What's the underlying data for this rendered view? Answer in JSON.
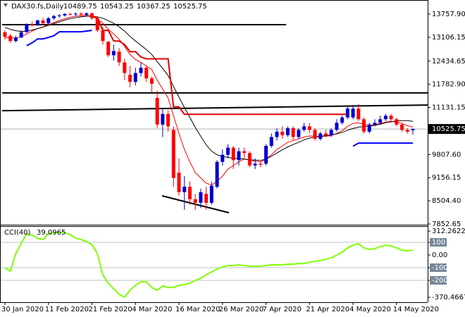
{
  "chart_data": [
    {
      "type": "candlestick",
      "title": "DAX30.fs,Daily",
      "categories": [
        "30 Jan 2020",
        null,
        null,
        null,
        null,
        null,
        null,
        null,
        "11 Feb 2020",
        null,
        null,
        null,
        null,
        null,
        null,
        null,
        "21 Feb 2020",
        null,
        null,
        null,
        null,
        null,
        null,
        null,
        "4 Mar 2020",
        null,
        null,
        null,
        null,
        null,
        null,
        null,
        "16 Mar 2020",
        null,
        null,
        null,
        null,
        null,
        null,
        null,
        "26 Mar 2020",
        null,
        null,
        null,
        null,
        null,
        null,
        null,
        "7 Apr 2020",
        null,
        null,
        null,
        null,
        null,
        null,
        null,
        "21 Apr 2020",
        null,
        null,
        null,
        null,
        null,
        null,
        null,
        "4 May 2020",
        null,
        null,
        null,
        null,
        null,
        null,
        null,
        "14 May 2020",
        null,
        null,
        null
      ],
      "open": [
        13250,
        13150,
        13000,
        13100,
        13250,
        13480,
        13450,
        13580,
        13500,
        13640,
        13700,
        13720,
        13760,
        13750,
        13770,
        13740,
        13780,
        13640,
        13300,
        12980,
        12600,
        12700,
        12400,
        12050,
        11850,
        12100,
        12250,
        11950,
        11400,
        10650,
        10950,
        10500,
        9300,
        8750,
        8900,
        8550,
        8450,
        8700,
        8450,
        8900,
        9600,
        9800,
        10000,
        9650,
        9900,
        9850,
        9500,
        9550,
        9550,
        10050,
        10300,
        10450,
        10350,
        10550,
        10300,
        10500,
        10600,
        10500,
        10250,
        10400,
        10350,
        10500,
        10700,
        10850,
        10850,
        11100,
        10800,
        10450,
        10650,
        10700,
        10800,
        10900,
        10800,
        10650,
        10500,
        10489.75
      ],
      "high": [
        13300,
        13200,
        13150,
        13300,
        13500,
        13550,
        13600,
        13650,
        13680,
        13740,
        13760,
        13790,
        13800,
        13800,
        13810,
        13800,
        13800,
        13680,
        13400,
        13000,
        12900,
        12800,
        12500,
        12300,
        12250,
        12400,
        12300,
        12000,
        11600,
        11100,
        11050,
        10600,
        9700,
        9200,
        9050,
        8700,
        8850,
        8900,
        9050,
        9650,
        9950,
        10100,
        10050,
        10000,
        10000,
        9900,
        9700,
        9600,
        10100,
        10400,
        10550,
        10600,
        10600,
        10600,
        10550,
        10700,
        10700,
        10550,
        10450,
        10500,
        10550,
        10800,
        10900,
        11150,
        11200,
        11230,
        10850,
        10700,
        10800,
        10900,
        10950,
        10950,
        10850,
        10700,
        10550,
        10543.25
      ],
      "low": [
        13050,
        12950,
        12960,
        13080,
        13230,
        13400,
        13420,
        13480,
        13480,
        13600,
        13650,
        13690,
        13720,
        13700,
        13700,
        13700,
        13600,
        13250,
        12900,
        12550,
        12450,
        12300,
        11900,
        11700,
        11750,
        12000,
        11850,
        11550,
        10550,
        10300,
        10450,
        8900,
        8650,
        8250,
        8400,
        8250,
        8300,
        8250,
        8400,
        8850,
        9500,
        9700,
        9400,
        9500,
        9700,
        9450,
        9400,
        9450,
        9500,
        10000,
        10200,
        10250,
        10300,
        10200,
        10250,
        10450,
        10400,
        10200,
        10200,
        10300,
        10300,
        10450,
        10650,
        10800,
        10800,
        10750,
        10400,
        10400,
        10600,
        10650,
        10750,
        10700,
        10600,
        10450,
        10400,
        10367.25
      ],
      "close": [
        13120,
        13000,
        13100,
        13250,
        13480,
        13450,
        13580,
        13500,
        13640,
        13700,
        13720,
        13760,
        13750,
        13770,
        13740,
        13780,
        13640,
        13300,
        13000,
        12600,
        12720,
        12400,
        12100,
        11850,
        12100,
        12250,
        11950,
        11800,
        10650,
        10950,
        10600,
        9150,
        8750,
        8900,
        8550,
        8450,
        8750,
        8450,
        8930,
        9600,
        9800,
        10000,
        9650,
        9900,
        9850,
        9500,
        9550,
        9520,
        10050,
        10300,
        10450,
        10350,
        10550,
        10300,
        10500,
        10600,
        10500,
        10250,
        10400,
        10350,
        10500,
        10700,
        10850,
        11100,
        11100,
        10800,
        10450,
        10650,
        10700,
        10800,
        10900,
        10800,
        10650,
        10500,
        10450,
        10525.75
      ],
      "up_color": "#0000cd",
      "down_color": "#ff0000",
      "ylim": [
        7852.65,
        13757.9
      ],
      "yticks": [
        {
          "value": 13757.9,
          "label": "13757.90"
        },
        13106.15,
        12434.65,
        {
          "value": 11782.9,
          "label": "11782.90"
        },
        11131.15,
        {
          "value": 9807.6,
          "label": "9807.60"
        },
        9156.15,
        {
          "value": 8504.4,
          "label": "8504.40"
        },
        7852.65
      ],
      "series": [
        {
          "color": "#ff0000",
          "width": 1,
          "values": [
            13100,
            13090,
            13080,
            13120,
            13200,
            13280,
            13350,
            13400,
            13460,
            13520,
            13580,
            13630,
            13670,
            13700,
            13710,
            13720,
            13700,
            13620,
            13500,
            13330,
            13200,
            13050,
            12850,
            12620,
            12480,
            12400,
            12300,
            12200,
            11900,
            11650,
            11400,
            10900,
            10400,
            9950,
            9600,
            9300,
            9150,
            9000,
            8950,
            9050,
            9200,
            9400,
            9500,
            9600,
            9680,
            9650,
            9620,
            9600,
            9680,
            9800,
            9950,
            10050,
            10150,
            10200,
            10250,
            10300,
            10330,
            10320,
            10320,
            10320,
            10340,
            10400,
            10480,
            10600,
            10680,
            10700,
            10650,
            10640,
            10650,
            10680,
            10720,
            10740,
            10720,
            10680,
            10620,
            10580
          ]
        },
        {
          "color": "#000000",
          "width": 1,
          "values": [
            13380,
            13330,
            13290,
            13270,
            13280,
            13310,
            13350,
            13390,
            13440,
            13490,
            13540,
            13590,
            13630,
            13660,
            13680,
            13700,
            13700,
            13680,
            13640,
            13570,
            13500,
            13400,
            13280,
            13130,
            13000,
            12880,
            12760,
            12620,
            12420,
            12230,
            12030,
            11720,
            11420,
            11130,
            10850,
            10570,
            10320,
            10080,
            9900,
            9800,
            9750,
            9730,
            9700,
            9690,
            9680,
            9660,
            9650,
            9640,
            9680,
            9760,
            9850,
            9940,
            10020,
            10090,
            10150,
            10220,
            10270,
            10300,
            10320,
            10340,
            10360,
            10390,
            10430,
            10490,
            10540,
            10580,
            10590,
            10610,
            10630,
            10660,
            10700,
            10730,
            10750,
            10760,
            10760,
            10740
          ]
        },
        {
          "color": "#e00000",
          "width": 2,
          "values": [
            null,
            null,
            null,
            null,
            null,
            null,
            null,
            null,
            null,
            null,
            null,
            null,
            null,
            null,
            null,
            null,
            13700,
            13650,
            13300,
            13300,
            13000,
            13000,
            12900,
            12700,
            12700,
            12550,
            12500,
            12500,
            12500,
            12500,
            12500,
            11150,
            11150,
            10940,
            10940,
            10940,
            10940,
            10940,
            10940,
            10940,
            10940,
            10940,
            10940,
            10940,
            10940,
            10940,
            10940,
            10940,
            10940,
            10940,
            10940,
            10940,
            10940,
            10940,
            10940,
            10940,
            10940,
            10940,
            10940,
            10940,
            10940,
            10940,
            10940,
            10940,
            null,
            null,
            null,
            null,
            null,
            null,
            null,
            null,
            null,
            null,
            null,
            null
          ]
        },
        {
          "color": "#0000ff",
          "width": 2,
          "values": [
            null,
            null,
            null,
            null,
            12870,
            12950,
            13060,
            13060,
            13100,
            13150,
            13260,
            13260,
            13260,
            13260,
            13260,
            13280,
            13300,
            null,
            null,
            null,
            null,
            null,
            null,
            null,
            null,
            null,
            null,
            null,
            null,
            null,
            null,
            null,
            null,
            null,
            null,
            null,
            null,
            null,
            null,
            null,
            null,
            null,
            null,
            null,
            null,
            null,
            null,
            null,
            null,
            null,
            null,
            null,
            null,
            null,
            null,
            null,
            null,
            null,
            null,
            null,
            null,
            null,
            null,
            null,
            10040,
            10130,
            10130,
            10130,
            10130,
            10130,
            10130,
            10130,
            10130,
            10130,
            10130,
            10130
          ]
        }
      ],
      "lines": [
        {
          "color": "#000000",
          "x": [
            -0.5,
            51.7
          ],
          "values": [
            13460,
            13460
          ]
        },
        {
          "color": "#000000",
          "x": [
            -0.5,
            78
          ],
          "values": [
            11540,
            11540
          ]
        },
        {
          "color": "#000000",
          "x": [
            -0.5,
            78
          ],
          "values": [
            11040,
            11200
          ]
        },
        {
          "color": "#000000",
          "x": [
            28.9,
            41.2
          ],
          "values": [
            8645,
            8170
          ]
        }
      ]
    },
    {
      "type": "line",
      "title": "CCI(40)",
      "color": "#7fff00",
      "values": [
        -100,
        -128,
        11,
        94,
        167,
        156,
        133,
        122,
        167,
        178,
        178,
        178,
        161,
        133,
        122,
        106,
        83,
        11,
        -156,
        -222,
        -267,
        -311,
        -333,
        -278,
        -239,
        -211,
        -211,
        -256,
        -278,
        -244,
        -256,
        -256,
        -239,
        -233,
        -222,
        -200,
        -183,
        -156,
        -133,
        -111,
        -94,
        -83,
        -83,
        -78,
        -83,
        -89,
        -89,
        -89,
        -83,
        -78,
        -78,
        -78,
        -72,
        -72,
        -67,
        -67,
        -56,
        -50,
        -44,
        -33,
        -22,
        0,
        22,
        56,
        78,
        89,
        56,
        44,
        50,
        67,
        78,
        72,
        56,
        39,
        33,
        39.0965
      ],
      "ylim": [
        -370.4667,
        312.2622
      ],
      "yticks": [
        312.2622,
        100,
        {
          "value": 0,
          "label": "0.00"
        },
        -100,
        -200,
        -370.4667
      ],
      "levels": [
        100,
        -100,
        -200
      ]
    }
  ]
}
